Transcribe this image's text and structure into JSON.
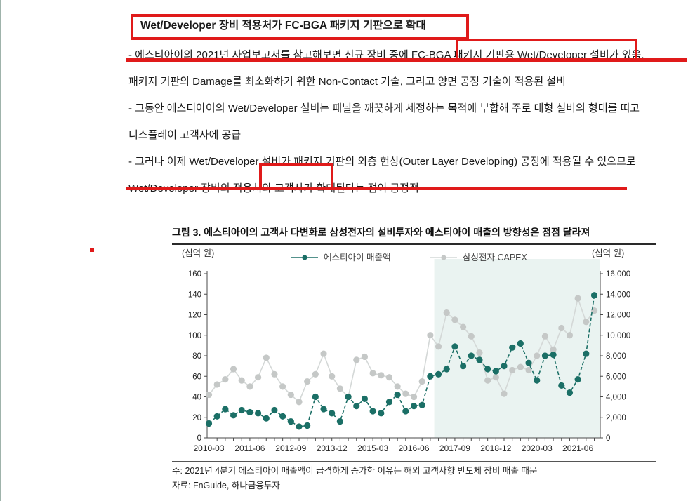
{
  "page": {
    "edge_line_color": "#9fb3ab",
    "heading": "Wet/Developer 장비 적용처가 FC-BGA 패키지 기판으로 확대",
    "paragraphs": [
      "- 에스티아이의 2021년 사업보고서를 참고해보면 신규 장비 중에 FC-BGA 패키지 기판용 Wet/Developer 설비가 있음. 패키지 기판의 Damage를 최소화하기 위한 Non-Contact 기술, 그리고 양면 공정 기술이 적용된 설비",
      "- 그동안 에스티아이의 Wet/Developer 설비는 패널을 깨끗하게 세정하는 목적에 부합해 주로 대형 설비의 형태를 띠고 디스플레이 고객사에 공급",
      "- 그러나 이제 Wet/Developer 설비가 패키지 기판의 외층 현상(Outer Layer Developing) 공정에 적용될 수 있으므로 Wet/Developer 장비의 적용처와 고객사가 확대된다는 점이 긍정적"
    ]
  },
  "annotations": {
    "color": "#e01a1a",
    "items": [
      {
        "name": "annotation-rect-title",
        "highlights": "Wet/Developer 장비 적용처가 FC-BGA 패키지 기판으로 확대"
      },
      {
        "name": "annotation-rect-fcbga",
        "highlights": "FC-BGA 패키지 기판용 Wet/Developer"
      },
      {
        "name": "annotation-underline-1",
        "highlights": "paragraph 1 first line"
      },
      {
        "name": "annotation-rect-package",
        "highlights": "패키지 기판의"
      },
      {
        "name": "annotation-underline-2",
        "highlights": "paragraph 3 first line"
      },
      {
        "name": "annotation-dot",
        "highlights": "stray mark"
      }
    ]
  },
  "figure": {
    "caption": "그림 3. 에스티아이의 고객사 다변화로 삼성전자의 설비투자와 에스티아이 매출의 방향성은 점점 달라져",
    "note": "주: 2021년 4분기 에스티아이 매출액이 급격하게 증가한 이유는 해외 고객사향 반도체 장비 매출 때문",
    "source": "자료: FnGuide, 하나금융투자"
  },
  "chart_data": {
    "type": "line",
    "title": "그림 3. 에스티아이의 고객사 다변화로 삼성전자의 설비투자와 에스티아이 매출의 방향성은 점점 달라져",
    "unit_left": "(십억 원)",
    "unit_right": "(십억 원)",
    "left_axis": {
      "min": 0,
      "max": 160,
      "step": 20
    },
    "right_axis": {
      "min": 0,
      "max": 16000,
      "step": 2000
    },
    "x_tick_step": 5,
    "x_tick_labels": [
      "2010-03",
      "2011-06",
      "2012-09",
      "2013-12",
      "2015-03",
      "2016-06",
      "2017-09",
      "2018-12",
      "2020-03",
      "2021-06"
    ],
    "x_quarters": [
      "2010-03",
      "2010-06",
      "2010-09",
      "2010-12",
      "2011-03",
      "2011-06",
      "2011-09",
      "2011-12",
      "2012-03",
      "2012-06",
      "2012-09",
      "2012-12",
      "2013-03",
      "2013-06",
      "2013-09",
      "2013-12",
      "2014-03",
      "2014-06",
      "2014-09",
      "2014-12",
      "2015-03",
      "2015-06",
      "2015-09",
      "2015-12",
      "2016-03",
      "2016-06",
      "2016-09",
      "2016-12",
      "2017-03",
      "2017-06",
      "2017-09",
      "2017-12",
      "2018-03",
      "2018-06",
      "2018-09",
      "2018-12",
      "2019-03",
      "2019-06",
      "2019-09",
      "2019-12",
      "2020-03",
      "2020-06",
      "2020-09",
      "2020-12",
      "2021-03",
      "2021-06",
      "2021-09",
      "2021-12"
    ],
    "series": [
      {
        "name": "에스티아이 매출액",
        "axis": "left",
        "color": "#1b6f66",
        "line_color": "#1b6f66",
        "line_style": "dashed",
        "values": [
          14,
          21,
          28,
          22,
          27,
          25,
          24,
          19,
          27,
          21,
          16,
          11,
          12,
          40,
          28,
          24,
          16,
          40,
          31,
          38,
          26,
          24,
          35,
          42,
          26,
          31,
          32,
          60,
          62,
          67,
          89,
          70,
          80,
          76,
          67,
          65,
          70,
          88,
          92,
          73,
          56,
          80,
          81,
          51,
          44,
          57,
          82,
          139
        ]
      },
      {
        "name": "삼성전자 CAPEX",
        "axis": "right",
        "color": "#c5c8c7",
        "line_color": "#d4d8d7",
        "line_style": "solid",
        "values": [
          4200,
          5200,
          5700,
          6700,
          5600,
          5000,
          5900,
          7800,
          6200,
          5000,
          4200,
          3500,
          5500,
          6200,
          8200,
          6000,
          4800,
          4000,
          7600,
          7900,
          6300,
          6100,
          5900,
          5000,
          4300,
          4000,
          5500,
          10000,
          8900,
          12200,
          11500,
          10800,
          9900,
          8300,
          5600,
          5900,
          4300,
          6600,
          6900,
          6600,
          8000,
          9900,
          8600,
          10700,
          10000,
          13600,
          11300,
          12400
        ]
      }
    ],
    "highlight_region": {
      "start_quarter": "2017-03",
      "start_index": 28,
      "color": "#eaf3f1"
    },
    "legend_position": "top-center",
    "grid": false
  }
}
